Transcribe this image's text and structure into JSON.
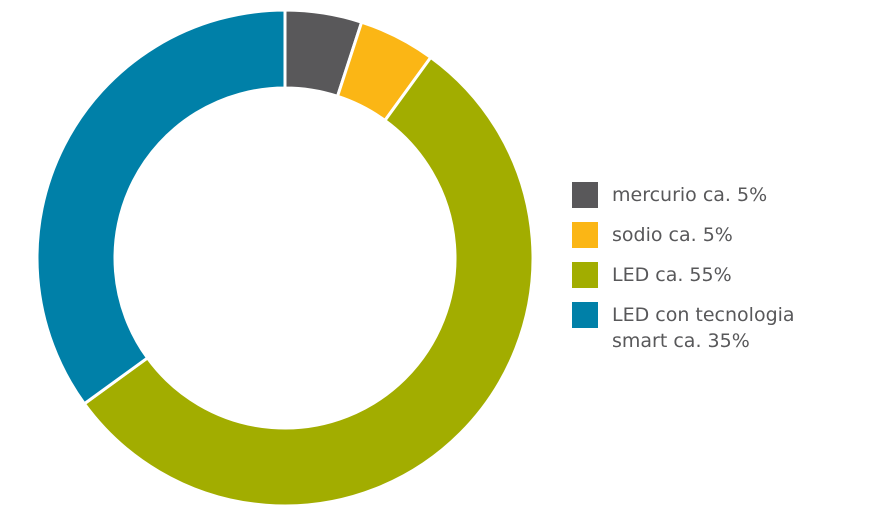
{
  "chart_data": {
    "type": "donut",
    "categories": [
      "mercurio ca. 5%",
      "sodio ca. 5%",
      "LED ca. 55%",
      "LED con tecnologia smart ca. 35%"
    ],
    "values": [
      5,
      5,
      55,
      35
    ],
    "colors": [
      "#59585a",
      "#fbb615",
      "#a2ad00",
      "#0080a8"
    ],
    "legend": "right"
  }
}
